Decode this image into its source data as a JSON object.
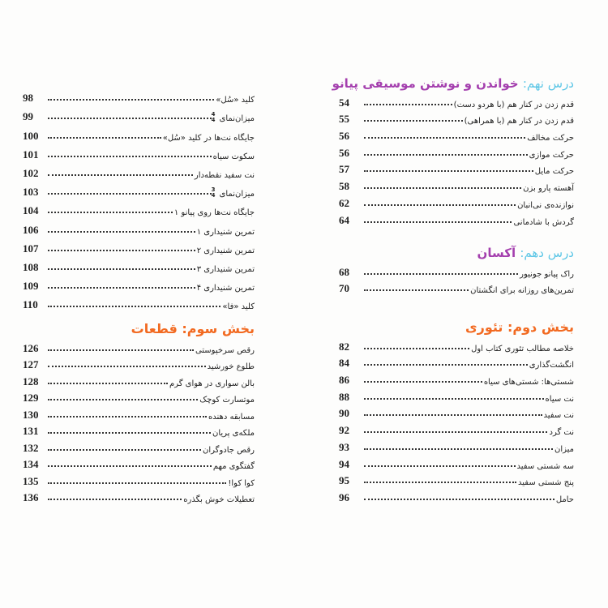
{
  "right": {
    "lesson9": {
      "prefix": "درس نهم:",
      "title": "خواندن و نوشتن موسیقی پیانو",
      "items": [
        {
          "title": "قدم زدن در کنار هم (با هردو دست)",
          "page": "54"
        },
        {
          "title": "قدم زدن در کنار هم (با همراهی)",
          "page": "55"
        },
        {
          "title": "حرکت مخالف",
          "page": "56"
        },
        {
          "title": "حرکت موازی",
          "page": "56"
        },
        {
          "title": "حرکت مایل",
          "page": "57"
        },
        {
          "title": "آهسته پارو بزن",
          "page": "58"
        },
        {
          "title": "نوازنده‌ی نی‌انبان",
          "page": "62"
        },
        {
          "title": "گردش با شادمانی",
          "page": "64"
        }
      ]
    },
    "lesson10": {
      "prefix": "درس دهم:",
      "title": "آکسان",
      "items": [
        {
          "title": "راک پیانو جونیور",
          "page": "68"
        },
        {
          "title": "تمرین‌های روزانه برای انگشتان",
          "page": "70"
        }
      ]
    },
    "part2": {
      "title": "بخش دوم: تئوری",
      "items": [
        {
          "title": "خلاصه مطالب تئوری کتاب اول",
          "page": "82"
        },
        {
          "title": "انگشت‌گذاری",
          "page": "84"
        },
        {
          "title": "شستی‌ها: شستی‌های سیاه",
          "page": "86"
        },
        {
          "title": "نت سیاه",
          "page": "88"
        },
        {
          "title": "نت سفید",
          "page": "90"
        },
        {
          "title": "نت گرد",
          "page": "92"
        },
        {
          "title": "میزان",
          "page": "93"
        },
        {
          "title": "سه شستی سفید",
          "page": "94"
        },
        {
          "title": "پنج شستی سفید",
          "page": "95"
        },
        {
          "title": "حامل",
          "page": "96"
        }
      ]
    }
  },
  "left": {
    "items": [
      {
        "title": "کلید «سُل»",
        "page": "98"
      },
      {
        "title": "میزان‌نمای",
        "fraction": [
          "4",
          "4"
        ],
        "page": "99"
      },
      {
        "title": "جایگاه نت‌ها در کلید «سُل»",
        "page": "100"
      },
      {
        "title": "سکوت سیاه",
        "page": "101"
      },
      {
        "title": "نت سفید نقطه‌دار",
        "page": "102"
      },
      {
        "title": "میزان‌نمای",
        "fraction": [
          "3",
          "4"
        ],
        "page": "103"
      },
      {
        "title": "جایگاه نت‌ها روی پیانو ۱",
        "page": "104"
      },
      {
        "title": "تمرین شنیداری ۱",
        "page": "106"
      },
      {
        "title": "تمرین شنیداری ۲",
        "page": "107"
      },
      {
        "title": "تمرین شنیداری ۳",
        "page": "108"
      },
      {
        "title": "تمرین شنیداری ۴",
        "page": "109"
      },
      {
        "title": "کلید «فا»",
        "page": "110"
      }
    ],
    "part3": {
      "title": "بخش سوم: قطعات",
      "items": [
        {
          "title": "رقص سرخپوستی",
          "page": "126"
        },
        {
          "title": "طلوع خورشید",
          "page": "127"
        },
        {
          "title": "بالن سواری در هوای گرم",
          "page": "128"
        },
        {
          "title": "موتسارت کوچک",
          "page": "129"
        },
        {
          "title": "مسابقه دهنده",
          "page": "130"
        },
        {
          "title": "ملکه‌ی پریان",
          "page": "131"
        },
        {
          "title": "رقص جادوگران",
          "page": "132"
        },
        {
          "title": "گفتگوی مهم",
          "page": "134"
        },
        {
          "title": "کوا کوا!",
          "page": "135"
        },
        {
          "title": "تعطیلات خوش بگذره",
          "page": "136"
        }
      ]
    }
  },
  "colors": {
    "lesson_prefix": "#5cc6e6",
    "lesson_title": "#a43fae",
    "part_heading": "#f26a21"
  }
}
